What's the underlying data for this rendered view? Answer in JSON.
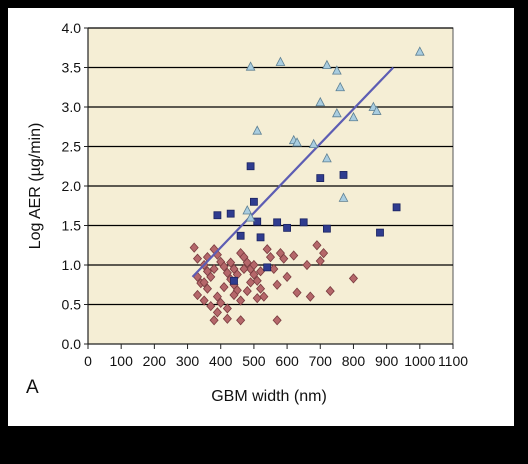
{
  "chart_data": {
    "type": "scatter",
    "panel_label": "A",
    "xlabel": "GBM width (nm)",
    "ylabel": "Log AER (µg/min)",
    "xlim": [
      0,
      1100
    ],
    "ylim": [
      0.0,
      4.0
    ],
    "x_ticks": [
      "0",
      "100",
      "200",
      "300",
      "400",
      "500",
      "600",
      "700",
      "800",
      "900",
      "1000",
      "1100"
    ],
    "y_ticks": [
      "0.0",
      "0.5",
      "1.0",
      "1.5",
      "2.0",
      "2.5",
      "3.0",
      "3.5",
      "4.0"
    ],
    "grid": "horizontal",
    "colors": {
      "plot_background": "#F5EED5",
      "gridline": "#000000",
      "triangle": "#A9CDE0",
      "square": "#2F3C8F",
      "diamond": "#B5676A",
      "trend_line": "#5D5DB3"
    },
    "series": [
      {
        "marker": "triangle",
        "points": [
          [
            490,
            3.51
          ],
          [
            580,
            3.57
          ],
          [
            720,
            3.53
          ],
          [
            750,
            3.46
          ],
          [
            760,
            3.25
          ],
          [
            510,
            2.7
          ],
          [
            620,
            2.58
          ],
          [
            630,
            2.55
          ],
          [
            680,
            2.53
          ],
          [
            700,
            3.06
          ],
          [
            720,
            2.35
          ],
          [
            750,
            2.92
          ],
          [
            800,
            2.87
          ],
          [
            860,
            3.0
          ],
          [
            870,
            2.95
          ],
          [
            1000,
            3.7
          ],
          [
            770,
            1.85
          ],
          [
            480,
            1.69
          ],
          [
            490,
            1.6
          ]
        ]
      },
      {
        "marker": "square",
        "points": [
          [
            490,
            2.25
          ],
          [
            500,
            1.8
          ],
          [
            390,
            1.63
          ],
          [
            430,
            1.65
          ],
          [
            510,
            1.55
          ],
          [
            570,
            1.54
          ],
          [
            600,
            1.47
          ],
          [
            650,
            1.54
          ],
          [
            700,
            2.1
          ],
          [
            720,
            1.46
          ],
          [
            770,
            2.14
          ],
          [
            460,
            1.37
          ],
          [
            520,
            1.35
          ],
          [
            880,
            1.41
          ],
          [
            930,
            1.73
          ],
          [
            540,
            0.97
          ],
          [
            440,
            0.8
          ]
        ]
      },
      {
        "marker": "diamond",
        "points": [
          [
            320,
            1.22
          ],
          [
            330,
            1.08
          ],
          [
            350,
            1.0
          ],
          [
            360,
            0.92
          ],
          [
            370,
            0.85
          ],
          [
            380,
            1.2
          ],
          [
            390,
            1.13
          ],
          [
            400,
            1.04
          ],
          [
            410,
            0.98
          ],
          [
            420,
            0.9
          ],
          [
            430,
            0.82
          ],
          [
            440,
            0.75
          ],
          [
            450,
            0.68
          ],
          [
            460,
            1.15
          ],
          [
            470,
            1.1
          ],
          [
            480,
            1.03
          ],
          [
            490,
            0.95
          ],
          [
            500,
            0.88
          ],
          [
            510,
            0.8
          ],
          [
            520,
            0.7
          ],
          [
            530,
            0.6
          ],
          [
            540,
            1.2
          ],
          [
            550,
            1.1
          ],
          [
            560,
            0.95
          ],
          [
            570,
            0.75
          ],
          [
            580,
            1.15
          ],
          [
            590,
            1.08
          ],
          [
            600,
            0.85
          ],
          [
            620,
            1.12
          ],
          [
            630,
            0.65
          ],
          [
            660,
            1.0
          ],
          [
            670,
            0.6
          ],
          [
            690,
            1.25
          ],
          [
            700,
            1.05
          ],
          [
            710,
            1.15
          ],
          [
            730,
            0.67
          ],
          [
            800,
            0.83
          ],
          [
            330,
            0.62
          ],
          [
            340,
            0.77
          ],
          [
            350,
            0.55
          ],
          [
            360,
            0.7
          ],
          [
            370,
            0.48
          ],
          [
            380,
            0.95
          ],
          [
            390,
            0.6
          ],
          [
            400,
            0.52
          ],
          [
            410,
            0.72
          ],
          [
            420,
            0.45
          ],
          [
            430,
            1.03
          ],
          [
            440,
            0.62
          ],
          [
            450,
            0.88
          ],
          [
            460,
            0.55
          ],
          [
            470,
            0.95
          ],
          [
            480,
            0.67
          ],
          [
            490,
            0.78
          ],
          [
            500,
            1.0
          ],
          [
            510,
            0.58
          ],
          [
            520,
            0.92
          ],
          [
            360,
            1.1
          ],
          [
            380,
            0.3
          ],
          [
            420,
            0.32
          ],
          [
            460,
            0.3
          ],
          [
            570,
            0.3
          ],
          [
            390,
            0.4
          ],
          [
            440,
            0.95
          ],
          [
            330,
            0.85
          ],
          [
            350,
            0.78
          ]
        ]
      }
    ],
    "trend_line": [
      [
        315,
        0.85
      ],
      [
        920,
        3.5
      ]
    ]
  }
}
